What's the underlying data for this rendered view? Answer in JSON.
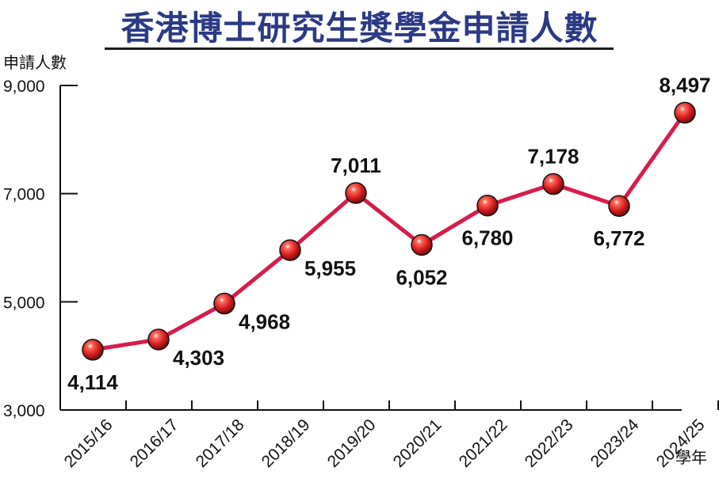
{
  "chart_data": {
    "type": "line",
    "title": "香港博士研究生獎學金申請人數",
    "ylabel": "申請人數",
    "xlabel": "學年",
    "categories": [
      "2015/16",
      "2016/17",
      "2017/18",
      "2018/19",
      "2019/20",
      "2020/21",
      "2021/22",
      "2022/23",
      "2023/24",
      "2024/25"
    ],
    "values": [
      4114,
      4303,
      4968,
      5955,
      7011,
      6052,
      6780,
      7178,
      6772,
      8497
    ],
    "value_labels": [
      "4,114",
      "4,303",
      "4,968",
      "5,955",
      "7,011",
      "6,052",
      "6,780",
      "7,178",
      "6,772",
      "8,497"
    ],
    "ylim": [
      3000,
      9000
    ],
    "yticks": [
      3000,
      5000,
      7000,
      9000
    ],
    "ytick_labels": [
      "3,000",
      "5,000",
      "7,000",
      "9,000"
    ],
    "grid": false,
    "legend": "none",
    "colors": {
      "title": "#2b3a86",
      "line": "#d81b4a",
      "marker": "#d42020",
      "axis": "#111111"
    }
  }
}
